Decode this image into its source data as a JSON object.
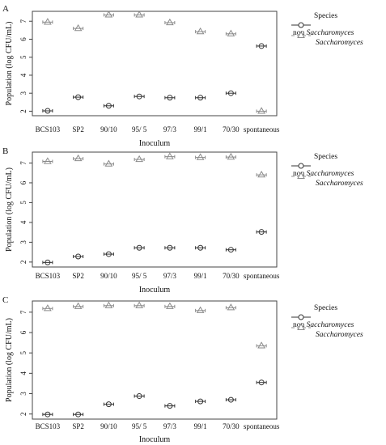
{
  "chart_data": [
    {
      "type": "scatter",
      "panel": "A",
      "xlabel": "Inoculum",
      "ylabel": "Population (log CFU/mL)",
      "categories": [
        "BCS103",
        "SP2",
        "90/10",
        "95/ 5",
        "97/3",
        "99/1",
        "70/30",
        "spontaneous"
      ],
      "yticks": [
        2,
        3,
        4,
        5,
        6,
        7
      ],
      "ylim": [
        1.75,
        7.55
      ],
      "legend": {
        "title": "Species",
        "position": "right"
      },
      "series": [
        {
          "name": "non Saccharomyces",
          "marker": "circle",
          "values": [
            2.02,
            2.78,
            2.3,
            2.82,
            2.75,
            2.75,
            3.0,
            5.62
          ]
        },
        {
          "name": "Saccharomyces",
          "marker": "triangle",
          "values": [
            6.95,
            6.6,
            7.35,
            7.35,
            6.92,
            6.42,
            6.3,
            2.0
          ]
        }
      ]
    },
    {
      "type": "scatter",
      "panel": "B",
      "xlabel": "Inoculum",
      "ylabel": "Population (log CFU/mL)",
      "categories": [
        "BCS103",
        "SP2",
        "90/10",
        "95/ 5",
        "97/3",
        "99/1",
        "70/30",
        "spontaneous"
      ],
      "yticks": [
        2,
        3,
        4,
        5,
        6,
        7
      ],
      "ylim": [
        1.75,
        7.55
      ],
      "legend": {
        "title": "Species",
        "position": "right"
      },
      "series": [
        {
          "name": "non Saccharomyces",
          "marker": "circle",
          "values": [
            1.98,
            2.28,
            2.4,
            2.72,
            2.72,
            2.72,
            2.62,
            3.52
          ]
        },
        {
          "name": "Saccharomyces",
          "marker": "triangle",
          "values": [
            7.08,
            7.22,
            6.95,
            7.18,
            7.32,
            7.28,
            7.3,
            6.4
          ]
        }
      ]
    },
    {
      "type": "scatter",
      "panel": "C",
      "xlabel": "Inoculum",
      "ylabel": "Population (log CFU/mL)",
      "categories": [
        "BCS103",
        "SP2",
        "90/10",
        "95/ 5",
        "97/3",
        "99/1",
        "70/30",
        "spontaneous"
      ],
      "yticks": [
        2,
        3,
        4,
        5,
        6,
        7
      ],
      "ylim": [
        1.75,
        7.55
      ],
      "legend": {
        "title": "Species",
        "position": "right"
      },
      "series": [
        {
          "name": "non Saccharomyces",
          "marker": "circle",
          "values": [
            1.98,
            1.98,
            2.48,
            2.88,
            2.4,
            2.62,
            2.7,
            3.55
          ]
        },
        {
          "name": "Saccharomyces",
          "marker": "triangle",
          "values": [
            7.18,
            7.28,
            7.32,
            7.32,
            7.28,
            7.08,
            7.22,
            5.35
          ]
        }
      ]
    }
  ],
  "legend_labels": {
    "title": "Species",
    "non_prefix": "non ",
    "genus": "Saccharomyces"
  },
  "colors": {
    "circle_series": "#333333",
    "triangle_series": "#8a8a8a",
    "frame": "#444444",
    "background": "#ffffff"
  }
}
